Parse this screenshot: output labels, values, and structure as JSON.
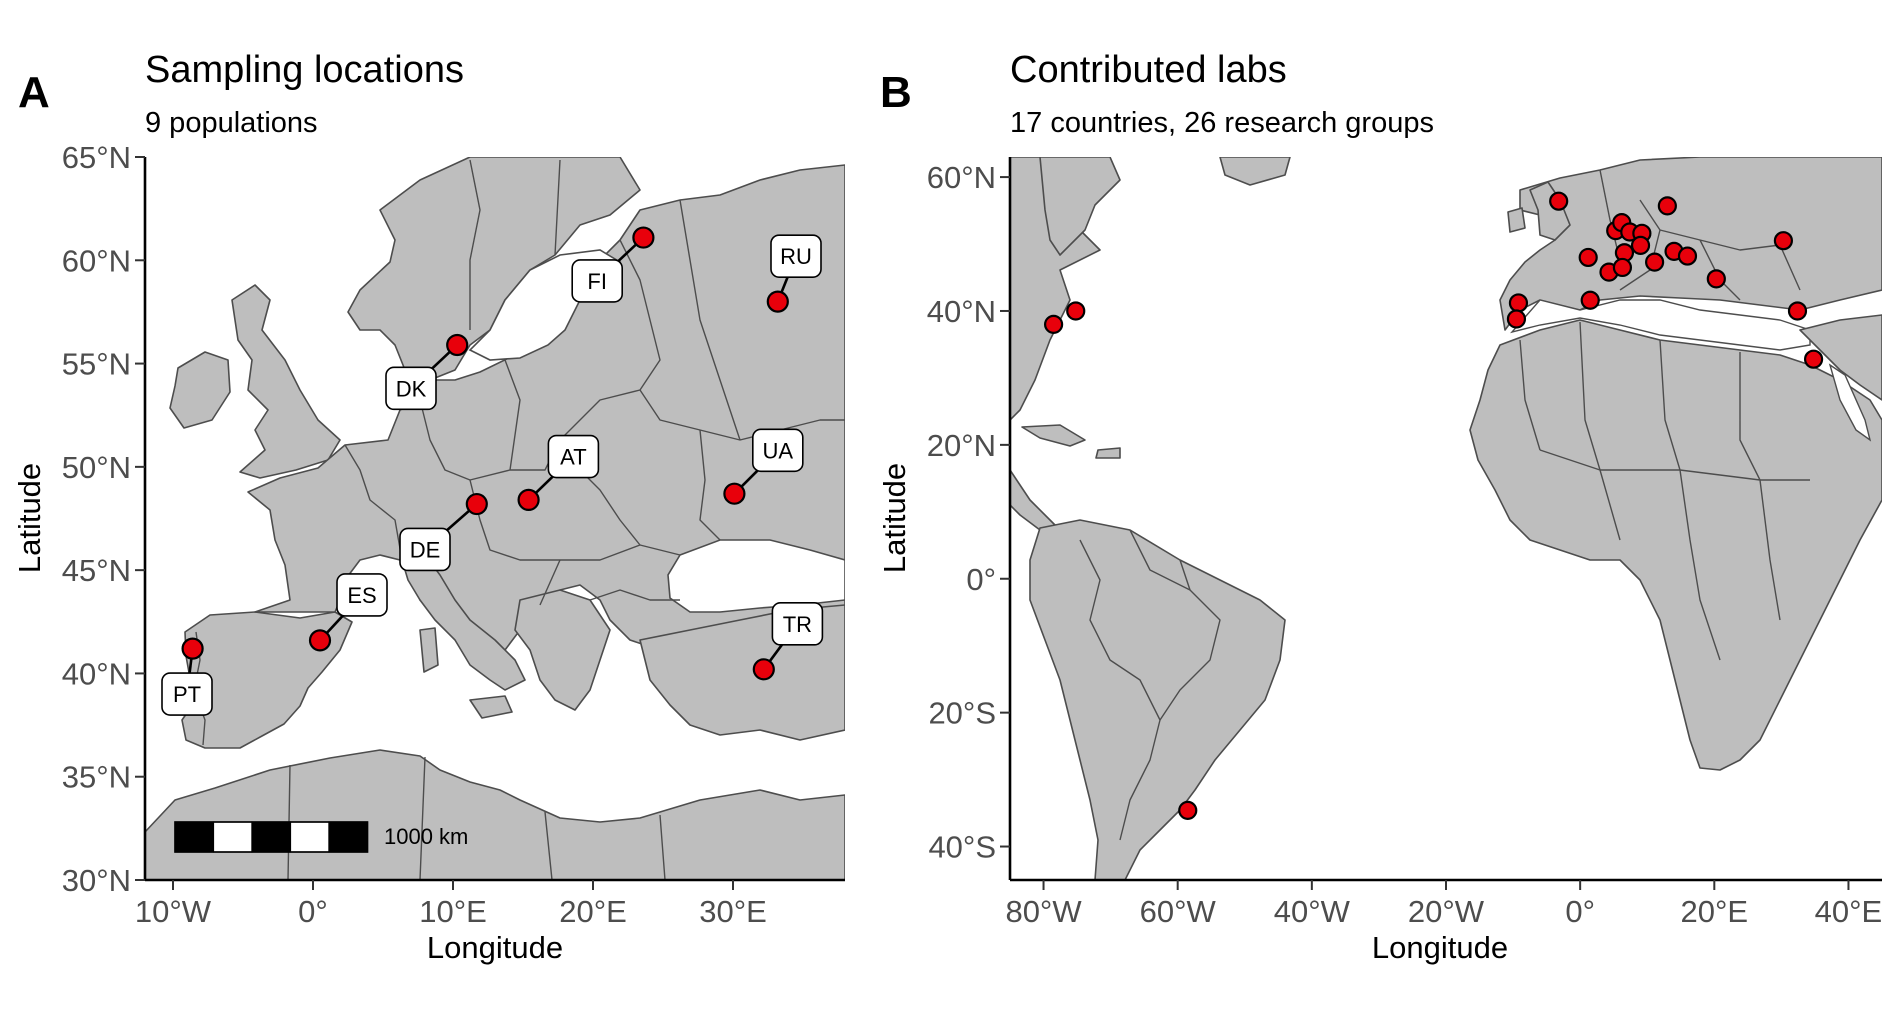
{
  "colors": {
    "land": "#bebebe",
    "border": "#4d4d4d",
    "point": "#e8000b",
    "water": "#ffffff"
  },
  "panel_a": {
    "tag": "A",
    "title": "Sampling locations",
    "subtitle": "9 populations",
    "xlabel": "Longitude",
    "ylabel": "Latitude",
    "xlim": [
      -12,
      38
    ],
    "ylim": [
      30,
      65
    ],
    "x_ticks": [
      {
        "value": -10,
        "label": "10°W"
      },
      {
        "value": 0,
        "label": "0°"
      },
      {
        "value": 10,
        "label": "10°E"
      },
      {
        "value": 20,
        "label": "20°E"
      },
      {
        "value": 30,
        "label": "30°E"
      }
    ],
    "y_ticks": [
      {
        "value": 30,
        "label": "30°N"
      },
      {
        "value": 35,
        "label": "35°N"
      },
      {
        "value": 40,
        "label": "40°N"
      },
      {
        "value": 45,
        "label": "45°N"
      },
      {
        "value": 50,
        "label": "50°N"
      },
      {
        "value": 55,
        "label": "55°N"
      },
      {
        "value": 60,
        "label": "60°N"
      },
      {
        "value": 65,
        "label": "65°N"
      }
    ],
    "sites": [
      {
        "code": "PT",
        "lon": -8.6,
        "lat": 41.2,
        "label_lon": -9.0,
        "label_lat": 39.0
      },
      {
        "code": "ES",
        "lon": 0.5,
        "lat": 41.6,
        "label_lon": 3.5,
        "label_lat": 43.8
      },
      {
        "code": "DE",
        "lon": 11.7,
        "lat": 48.2,
        "label_lon": 8.0,
        "label_lat": 46.0
      },
      {
        "code": "AT",
        "lon": 15.4,
        "lat": 48.4,
        "label_lon": 18.6,
        "label_lat": 50.5
      },
      {
        "code": "DK",
        "lon": 10.3,
        "lat": 55.9,
        "label_lon": 7.0,
        "label_lat": 53.8
      },
      {
        "code": "FI",
        "lon": 23.6,
        "lat": 61.1,
        "label_lon": 20.3,
        "label_lat": 59.0
      },
      {
        "code": "RU",
        "lon": 33.2,
        "lat": 58.0,
        "label_lon": 34.5,
        "label_lat": 60.2
      },
      {
        "code": "UA",
        "lon": 30.1,
        "lat": 48.7,
        "label_lon": 33.2,
        "label_lat": 50.8
      },
      {
        "code": "TR",
        "lon": 32.2,
        "lat": 40.2,
        "label_lon": 34.6,
        "label_lat": 42.4
      }
    ],
    "scale_bar": {
      "label": "1000 km",
      "segments": [
        "black",
        "white",
        "black",
        "white",
        "black"
      ]
    }
  },
  "panel_b": {
    "tag": "B",
    "title": "Contributed labs",
    "subtitle": "17 countries, 26 research groups",
    "xlabel": "Longitude",
    "ylabel": "Latitude",
    "xlim": [
      -85,
      45
    ],
    "ylim": [
      -45,
      63
    ],
    "x_ticks": [
      {
        "value": -80,
        "label": "80°W"
      },
      {
        "value": -60,
        "label": "60°W"
      },
      {
        "value": -40,
        "label": "40°W"
      },
      {
        "value": -20,
        "label": "20°W"
      },
      {
        "value": 0,
        "label": "0°"
      },
      {
        "value": 20,
        "label": "20°E"
      },
      {
        "value": 40,
        "label": "40°E"
      }
    ],
    "y_ticks": [
      {
        "value": 60,
        "label": "60°N"
      },
      {
        "value": 40,
        "label": "40°N"
      },
      {
        "value": 20,
        "label": "20°N"
      },
      {
        "value": 0,
        "label": "0°"
      },
      {
        "value": -20,
        "label": "20°S"
      },
      {
        "value": -40,
        "label": "40°S"
      }
    ],
    "labs": [
      {
        "lon": -78.5,
        "lat": 38.0
      },
      {
        "lon": -75.2,
        "lat": 40.0
      },
      {
        "lon": -58.5,
        "lat": -34.6
      },
      {
        "lon": -3.2,
        "lat": 56.4
      },
      {
        "lon": 5.3,
        "lat": 52.0
      },
      {
        "lon": 6.2,
        "lat": 53.2
      },
      {
        "lon": 7.4,
        "lat": 51.8
      },
      {
        "lon": 9.2,
        "lat": 51.6
      },
      {
        "lon": 13.0,
        "lat": 55.7
      },
      {
        "lon": 1.2,
        "lat": 48.0
      },
      {
        "lon": 6.6,
        "lat": 48.7
      },
      {
        "lon": 9.0,
        "lat": 49.8
      },
      {
        "lon": 4.3,
        "lat": 45.8
      },
      {
        "lon": 6.3,
        "lat": 46.5
      },
      {
        "lon": 11.1,
        "lat": 47.3
      },
      {
        "lon": 14.0,
        "lat": 48.9
      },
      {
        "lon": 16.0,
        "lat": 48.2
      },
      {
        "lon": 20.3,
        "lat": 44.8
      },
      {
        "lon": 1.5,
        "lat": 41.6
      },
      {
        "lon": -9.2,
        "lat": 41.2
      },
      {
        "lon": -9.5,
        "lat": 38.8
      },
      {
        "lon": 30.3,
        "lat": 50.5
      },
      {
        "lon": 32.4,
        "lat": 40.0
      },
      {
        "lon": 34.8,
        "lat": 32.8
      }
    ]
  }
}
